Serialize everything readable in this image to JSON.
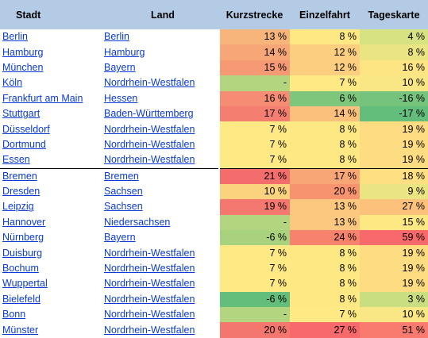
{
  "headers": {
    "stadt": "Stadt",
    "land": "Land",
    "kurzstrecke": "Kurzstrecke",
    "einzelfahrt": "Einzelfahrt",
    "tageskarte": "Tageskarte"
  },
  "rows": [
    {
      "stadt": "Berlin",
      "land": "Berlin",
      "kurz": "13 %",
      "einzel": "8 %",
      "tages": "4 %",
      "kurz_color": "#f7b57b",
      "einzel_color": "#fde884",
      "tages_color": "#d7e283"
    },
    {
      "stadt": "Hamburg",
      "land": "Hamburg",
      "kurz": "14 %",
      "einzel": "12 %",
      "tages": "8 %",
      "kurz_color": "#f7a677",
      "einzel_color": "#fcce7f",
      "tages_color": "#eae582"
    },
    {
      "stadt": "München",
      "land": "Bayern",
      "kurz": "15 %",
      "einzel": "12 %",
      "tages": "16 %",
      "kurz_color": "#f69a75",
      "einzel_color": "#fcce7f",
      "tages_color": "#fee583"
    },
    {
      "stadt": "Köln",
      "land": "Nordrhein-Westfalen",
      "kurz": "-",
      "einzel": "7 %",
      "tages": "10 %",
      "kurz_color": "#b4d580",
      "einzel_color": "#fee984",
      "tages_color": "#f8e784"
    },
    {
      "stadt": "Frankfurt am Main",
      "land": "Hessen",
      "kurz": "16 %",
      "einzel": "6 %",
      "tages": "-16 %",
      "kurz_color": "#f58c73",
      "einzel_color": "#7fc67d",
      "tages_color": "#75c37c"
    },
    {
      "stadt": "Stuttgart",
      "land": "Baden-Württemberg",
      "kurz": "17 %",
      "einzel": "14 %",
      "tages": "-17 %",
      "kurz_color": "#f47f71",
      "einzel_color": "#fbc07c",
      "tages_color": "#63be7b"
    },
    {
      "stadt": "Düsseldorf",
      "land": "Nordrhein-Westfalen",
      "kurz": "7 %",
      "einzel": "8 %",
      "tages": "19 %",
      "kurz_color": "#fee984",
      "einzel_color": "#fde884",
      "tages_color": "#fedc81"
    },
    {
      "stadt": "Dortmund",
      "land": "Nordrhein-Westfalen",
      "kurz": "7 %",
      "einzel": "8 %",
      "tages": "19 %",
      "kurz_color": "#fee984",
      "einzel_color": "#fde884",
      "tages_color": "#fedc81"
    },
    {
      "stadt": "Essen",
      "land": "Nordrhein-Westfalen",
      "kurz": "7 %",
      "einzel": "8 %",
      "tages": "19 %",
      "kurz_color": "#fee984",
      "einzel_color": "#fde884",
      "tages_color": "#fedc81"
    },
    {
      "stadt": "Bremen",
      "land": "Bremen",
      "kurz": "21 %",
      "einzel": "17 %",
      "tages": "18 %",
      "kurz_color": "#f46d6d",
      "einzel_color": "#f9a677",
      "tages_color": "#fee082"
    },
    {
      "stadt": "Dresden",
      "land": "Sachsen",
      "kurz": "10 %",
      "einzel": "20 %",
      "tages": "9 %",
      "kurz_color": "#fbd37f",
      "einzel_color": "#f8936f",
      "tages_color": "#eae582"
    },
    {
      "stadt": "Leipzig",
      "land": "Sachsen",
      "kurz": "19 %",
      "einzel": "13 %",
      "tages": "27 %",
      "kurz_color": "#f57870",
      "einzel_color": "#fcc77e",
      "tages_color": "#fcc17b"
    },
    {
      "stadt": "Hannover",
      "land": "Niedersachsen",
      "kurz": "-",
      "einzel": "13 %",
      "tages": "15 %",
      "kurz_color": "#b4d580",
      "einzel_color": "#fcc77e",
      "tages_color": "#fee884"
    },
    {
      "stadt": "Nürnberg",
      "land": "Bayern",
      "kurz": "-6 %",
      "einzel": "24 %",
      "tages": "59 %",
      "kurz_color": "#a9d27f",
      "einzel_color": "#f7836e",
      "tages_color": "#f8696b"
    },
    {
      "stadt": "Duisburg",
      "land": "Nordrhein-Westfalen",
      "kurz": "7 %",
      "einzel": "8 %",
      "tages": "19 %",
      "kurz_color": "#fee984",
      "einzel_color": "#fde884",
      "tages_color": "#fedc81"
    },
    {
      "stadt": "Bochum",
      "land": "Nordrhein-Westfalen",
      "kurz": "7 %",
      "einzel": "8 %",
      "tages": "19 %",
      "kurz_color": "#fee984",
      "einzel_color": "#fde884",
      "tages_color": "#fedc81"
    },
    {
      "stadt": "Wuppertal",
      "land": "Nordrhein-Westfalen",
      "kurz": "7 %",
      "einzel": "8 %",
      "tages": "19 %",
      "kurz_color": "#fee984",
      "einzel_color": "#fde884",
      "tages_color": "#fedc81"
    },
    {
      "stadt": "Bielefeld",
      "land": "Nordrhein-Westfalen",
      "kurz": "-6 %",
      "einzel": "8 %",
      "tages": "3 %",
      "kurz_color": "#63be7b",
      "einzel_color": "#fde884",
      "tages_color": "#c9dd81"
    },
    {
      "stadt": "Bonn",
      "land": "Nordrhein-Westfalen",
      "kurz": "-",
      "einzel": "7 %",
      "tages": "10 %",
      "kurz_color": "#b4d580",
      "einzel_color": "#fee984",
      "tages_color": "#f8e784"
    },
    {
      "stadt": "Münster",
      "land": "Nordrhein-Westfalen",
      "kurz": "20 %",
      "einzel": "27 %",
      "tages": "51 %",
      "kurz_color": "#f4776f",
      "einzel_color": "#f8696b",
      "tages_color": "#f97a6e"
    }
  ]
}
